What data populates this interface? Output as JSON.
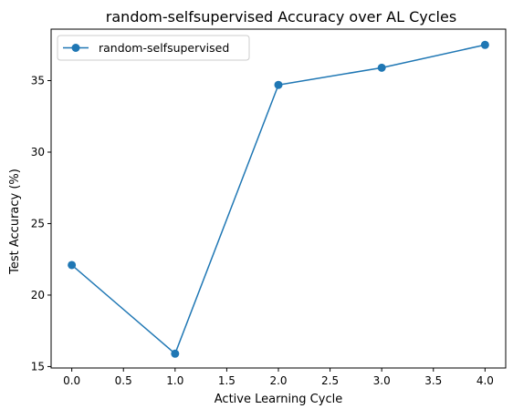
{
  "chart_data": {
    "type": "line",
    "title": "random-selfsupervised Accuracy over AL Cycles",
    "xlabel": "Active Learning Cycle",
    "ylabel": "Test Accuracy (%)",
    "x": [
      0,
      1,
      2,
      3,
      4
    ],
    "series": [
      {
        "name": "random-selfsupervised",
        "values": [
          22.1,
          15.9,
          34.7,
          35.9,
          37.5
        ],
        "color": "#1f77b4",
        "marker": "circle"
      }
    ],
    "xlim": [
      -0.2,
      4.2
    ],
    "ylim": [
      14.9,
      38.6
    ],
    "xticks": [
      0.0,
      0.5,
      1.0,
      1.5,
      2.0,
      2.5,
      3.0,
      3.5,
      4.0
    ],
    "xtick_labels": [
      "0.0",
      "0.5",
      "1.0",
      "1.5",
      "2.0",
      "2.5",
      "3.0",
      "3.5",
      "4.0"
    ],
    "yticks": [
      15,
      20,
      25,
      30,
      35
    ],
    "ytick_labels": [
      "15",
      "20",
      "25",
      "30",
      "35"
    ],
    "grid": false,
    "legend": "top-left"
  }
}
